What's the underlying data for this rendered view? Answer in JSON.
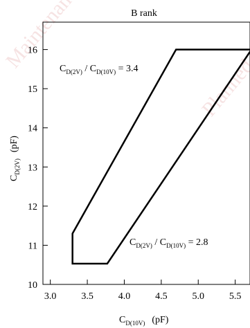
{
  "chart_data": {
    "type": "area",
    "title": "B rank",
    "xlabel": {
      "main": "C",
      "sub": "D(10V)",
      "unit": "(pF)"
    },
    "ylabel": {
      "main": "C",
      "sub": "D(2V)",
      "unit": "(pF)"
    },
    "xlim": [
      2.9,
      5.7
    ],
    "ylim": [
      10,
      16.7
    ],
    "xticks": [
      3.0,
      3.5,
      4.0,
      4.5,
      5.0,
      5.5
    ],
    "xtick_labels": [
      "3.0",
      "3.5",
      "4.0",
      "4.5",
      "5.0",
      "5.5"
    ],
    "yticks": [
      10,
      11,
      12,
      13,
      14,
      15,
      16
    ],
    "ytick_labels": [
      "10",
      "11",
      "12",
      "13",
      "14",
      "15",
      "16"
    ],
    "grid": false,
    "region": {
      "name": "B rank",
      "points": [
        [
          3.3,
          10.53
        ],
        [
          3.77,
          10.53
        ],
        [
          5.72,
          16.0
        ],
        [
          4.7,
          16.0
        ],
        [
          3.3,
          11.3
        ]
      ]
    },
    "annotations": [
      {
        "main1": "C",
        "sub1": "D(2V)",
        "sep": " / ",
        "main2": "C",
        "sub2": "D(10V)",
        "eq": " = 3.4"
      },
      {
        "main1": "C",
        "sub1": "D(2V)",
        "sep": " / ",
        "main2": "C",
        "sub2": "D(10V)",
        "eq": " = 2.8"
      }
    ]
  },
  "watermark": [
    "Maintenance",
    "Planned"
  ]
}
